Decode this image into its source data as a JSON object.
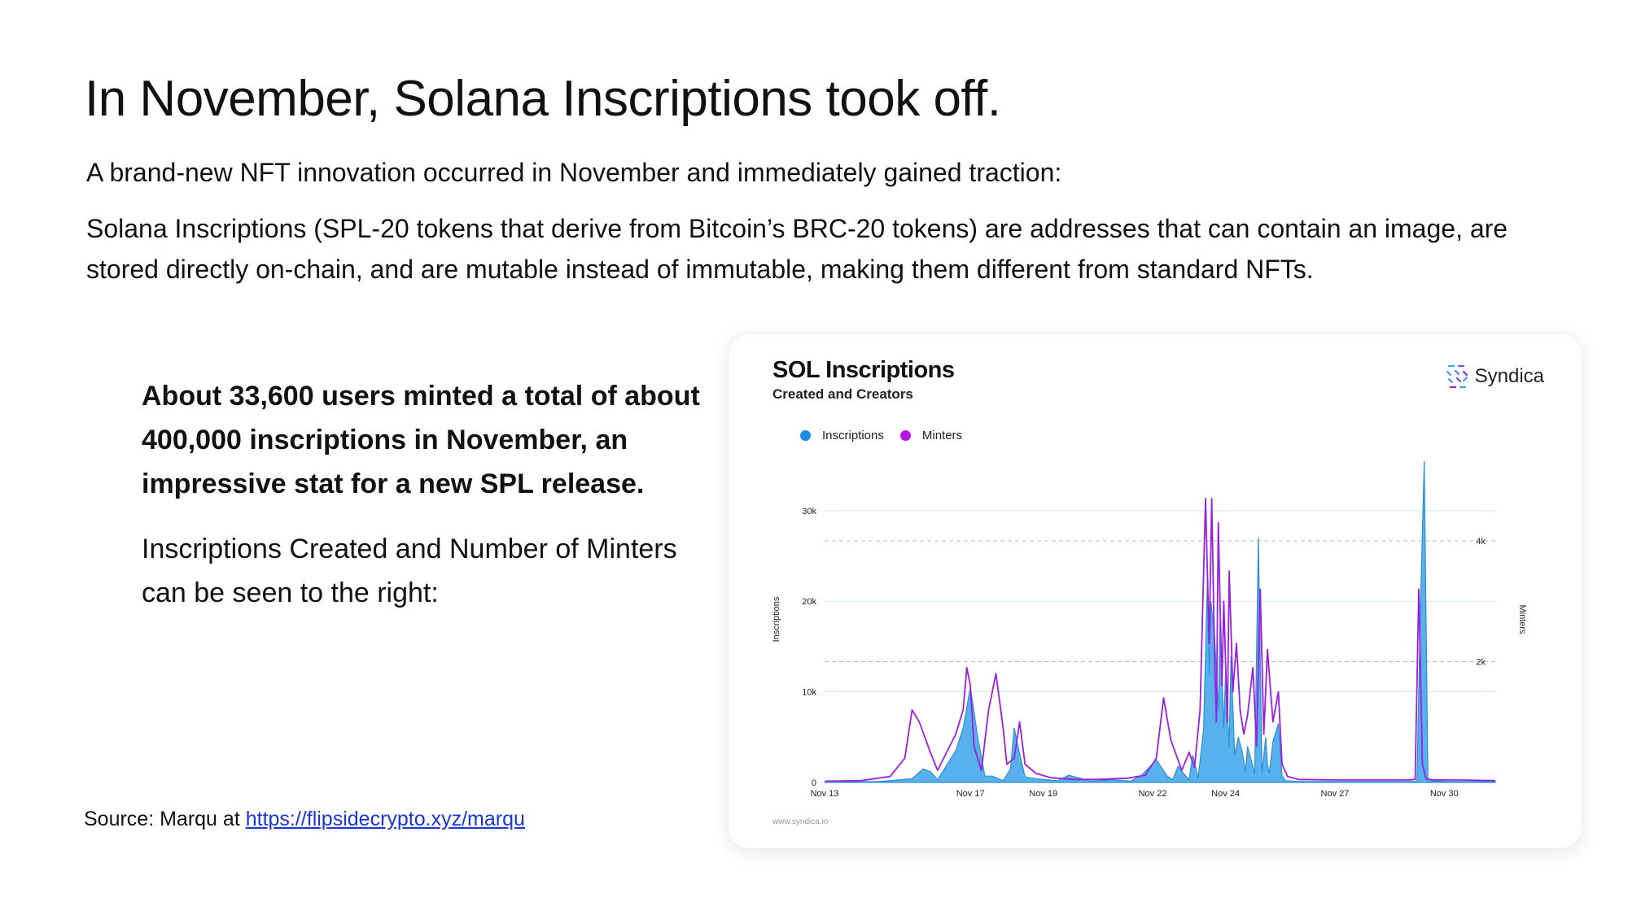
{
  "slide": {
    "title": "In November, Solana Inscriptions took off.",
    "intro_line1": "A brand-new NFT innovation occurred in November and immediately gained traction:",
    "intro_line2": "Solana Inscriptions (SPL-20 tokens that derive from Bitcoin’s BRC-20 tokens) are addresses that can contain an image, are stored directly on-chain, and are mutable instead of immutable, making them different from standard NFTs.",
    "stat_bold": "About 33,600 users minted a total of about 400,000 inscriptions in November, an impressive stat for a new SPL release.",
    "stat_regular": "Inscriptions Created and Number of Minters can be seen to the right:",
    "source_label": "Source: Marqu at ",
    "source_link": "https://flipsidecrypto.xyz/marqu"
  },
  "card": {
    "brand_name": "Syndica",
    "brand_icon": "syndica-logo-icon",
    "footer_url": "www.syndica.io"
  },
  "colors": {
    "inscriptions": "#3ba3e8",
    "minters": "#9b1fe0",
    "link": "#1a36d6"
  },
  "chart_data": {
    "type": "area",
    "title": "SOL Inscriptions",
    "subtitle": "Created and Creators",
    "ylabel": "Inscriptions",
    "y2label": "Minters",
    "legend_position": "top-left",
    "grid": true,
    "ylim": [
      0,
      36000
    ],
    "y2lim": [
      0,
      5400
    ],
    "y_ticks": [
      {
        "v": 0,
        "label": "0"
      },
      {
        "v": 10000,
        "label": "10k"
      },
      {
        "v": 20000,
        "label": "20k"
      },
      {
        "v": 30000,
        "label": "30k"
      }
    ],
    "y2_ticks": [
      {
        "v": 2000,
        "label": "2k"
      },
      {
        "v": 4000,
        "label": "4k"
      }
    ],
    "xlim": [
      13,
      31.4
    ],
    "x_ticks": [
      {
        "v": 13,
        "label": "Nov 13"
      },
      {
        "v": 17,
        "label": "Nov 17"
      },
      {
        "v": 19,
        "label": "Nov 19"
      },
      {
        "v": 22,
        "label": "Nov 22"
      },
      {
        "v": 24,
        "label": "Nov 24"
      },
      {
        "v": 27,
        "label": "Nov 27"
      },
      {
        "v": 30,
        "label": "Nov 30"
      }
    ],
    "x_unit": "day of November 2023 (fractional = hour of day)",
    "series": [
      {
        "name": "Inscriptions",
        "axis": "left",
        "style": "area",
        "x": [
          13,
          14.5,
          15.4,
          15.7,
          15.9,
          16.1,
          16.6,
          16.8,
          17.0,
          17.2,
          17.4,
          17.6,
          17.9,
          18.1,
          18.2,
          18.35,
          18.5,
          18.8,
          19.1,
          19.4,
          19.7,
          20.3,
          20.9,
          21.4,
          21.7,
          22.1,
          22.4,
          22.55,
          22.7,
          22.85,
          23.0,
          23.1,
          23.25,
          23.4,
          23.5,
          23.55,
          23.6,
          23.7,
          23.8,
          23.85,
          23.95,
          24.0,
          24.1,
          24.15,
          24.25,
          24.35,
          24.45,
          24.55,
          24.6,
          24.7,
          24.8,
          24.9,
          25.0,
          25.1,
          25.15,
          25.2,
          25.3,
          25.45,
          25.55,
          25.65,
          26.0,
          27.0,
          28.0,
          29.0,
          29.25,
          29.35,
          29.45,
          29.55,
          30.0,
          31.0,
          31.4
        ],
        "values": [
          0,
          100,
          400,
          1500,
          1200,
          300,
          3500,
          6000,
          10500,
          5000,
          700,
          700,
          200,
          1500,
          6000,
          3200,
          600,
          400,
          300,
          200,
          800,
          150,
          300,
          150,
          800,
          2500,
          700,
          300,
          1800,
          1000,
          300,
          3000,
          500,
          6000,
          22000,
          12000,
          20000,
          16000,
          8000,
          18000,
          6000,
          12000,
          4000,
          14000,
          3000,
          5000,
          3500,
          1200,
          4000,
          2500,
          1000,
          27000,
          1000,
          5000,
          2000,
          1000,
          4500,
          6500,
          700,
          200,
          100,
          100,
          100,
          100,
          100,
          20000,
          35500,
          200,
          100,
          100,
          100
        ]
      },
      {
        "name": "Minters",
        "axis": "right",
        "style": "line",
        "x": [
          13,
          14.0,
          14.8,
          15.2,
          15.4,
          15.6,
          15.9,
          16.1,
          16.6,
          16.8,
          16.9,
          17.0,
          17.1,
          17.3,
          17.5,
          17.7,
          17.9,
          18.0,
          18.2,
          18.35,
          18.5,
          18.8,
          19.2,
          19.8,
          20.5,
          21.3,
          21.8,
          22.1,
          22.3,
          22.5,
          22.8,
          23.0,
          23.15,
          23.3,
          23.45,
          23.55,
          23.62,
          23.7,
          23.75,
          23.8,
          23.9,
          23.95,
          24.05,
          24.1,
          24.2,
          24.3,
          24.4,
          24.5,
          24.6,
          24.75,
          24.85,
          24.95,
          25.05,
          25.15,
          25.3,
          25.45,
          25.55,
          25.7,
          26.0,
          27.0,
          28.0,
          29.0,
          29.2,
          29.3,
          29.4,
          29.5,
          29.7,
          30.5,
          31.4
        ],
        "values": [
          20,
          30,
          100,
          400,
          1200,
          1000,
          500,
          200,
          800,
          1200,
          1900,
          1600,
          600,
          200,
          1200,
          1800,
          900,
          300,
          400,
          1000,
          300,
          150,
          80,
          50,
          50,
          70,
          120,
          400,
          1400,
          700,
          200,
          500,
          250,
          1200,
          4700,
          2300,
          4700,
          2000,
          1000,
          4300,
          1600,
          3000,
          1000,
          3500,
          1500,
          2300,
          1200,
          800,
          1100,
          1900,
          600,
          3200,
          800,
          2200,
          1000,
          1500,
          300,
          100,
          50,
          40,
          40,
          40,
          50,
          3200,
          300,
          60,
          40,
          40,
          30
        ]
      }
    ]
  }
}
